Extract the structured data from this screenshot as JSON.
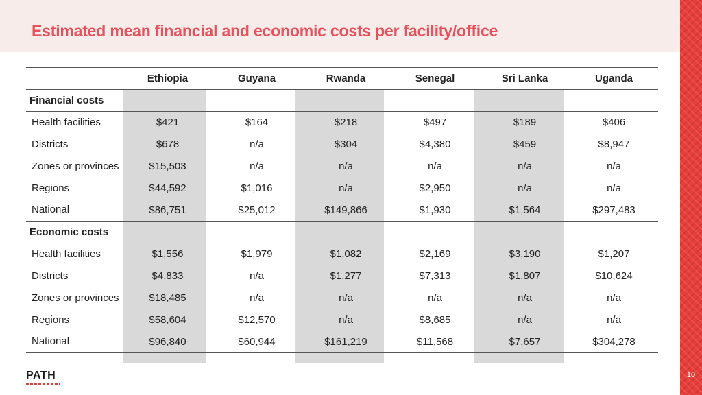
{
  "slide": {
    "title": "Estimated mean financial and economic costs per facility/office",
    "page_number": "10",
    "logo_text": "PATH",
    "accent_color": "#e63e3a",
    "title_color": "#e8505b"
  },
  "table": {
    "columns": [
      "Ethiopia",
      "Guyana",
      "Rwanda",
      "Senegal",
      "Sri Lanka",
      "Uganda"
    ],
    "sections": [
      {
        "label": "Financial costs",
        "rows": [
          {
            "label": "Health facilities",
            "values": [
              "$421",
              "$164",
              "$218",
              "$497",
              "$189",
              "$406"
            ]
          },
          {
            "label": "Districts",
            "values": [
              "$678",
              "n/a",
              "$304",
              "$4,380",
              "$459",
              "$8,947"
            ]
          },
          {
            "label": "Zones or provinces",
            "values": [
              "$15,503",
              "n/a",
              "n/a",
              "n/a",
              "n/a",
              "n/a"
            ]
          },
          {
            "label": "Regions",
            "values": [
              "$44,592",
              "$1,016",
              "n/a",
              "$2,950",
              "n/a",
              "n/a"
            ]
          },
          {
            "label": "National",
            "values": [
              "$86,751",
              "$25,012",
              "$149,866",
              "$1,930",
              "$1,564",
              "$297,483"
            ]
          }
        ]
      },
      {
        "label": "Economic costs",
        "rows": [
          {
            "label": "Health facilities",
            "values": [
              "$1,556",
              "$1,979",
              "$1,082",
              "$2,169",
              "$3,190",
              "$1,207"
            ]
          },
          {
            "label": "Districts",
            "values": [
              "$4,833",
              "n/a",
              "$1,277",
              "$7,313",
              "$1,807",
              "$10,624"
            ]
          },
          {
            "label": "Zones or provinces",
            "values": [
              "$18,485",
              "n/a",
              "n/a",
              "n/a",
              "n/a",
              "n/a"
            ]
          },
          {
            "label": "Regions",
            "values": [
              "$58,604",
              "$12,570",
              "n/a",
              "$8,685",
              "n/a",
              "n/a"
            ]
          },
          {
            "label": "National",
            "values": [
              "$96,840",
              "$60,944",
              "$161,219",
              "$11,568",
              "$7,657",
              "$304,278"
            ]
          }
        ]
      }
    ]
  }
}
